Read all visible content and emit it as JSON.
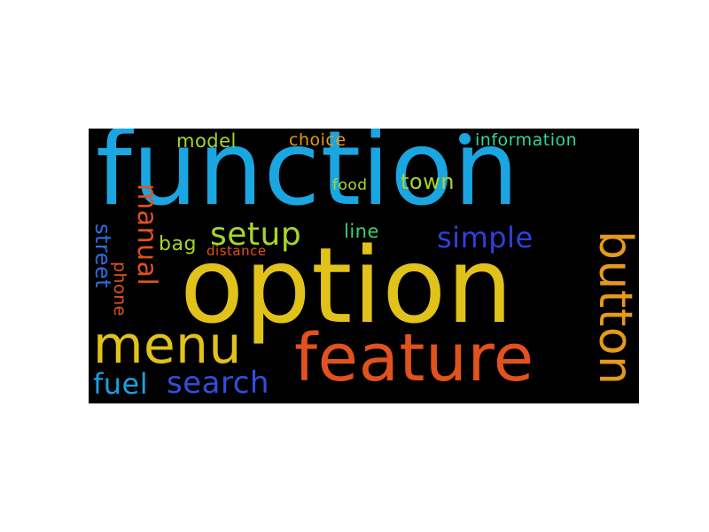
{
  "words": {
    "function": {
      "text": "function",
      "color": "#1aa6e0"
    },
    "option": {
      "text": "option",
      "color": "#e1c21a"
    },
    "feature": {
      "text": "feature",
      "color": "#e2521c"
    },
    "menu": {
      "text": "menu",
      "color": "#e1c21a"
    },
    "button": {
      "text": "button",
      "color": "#e49a1a"
    },
    "setup": {
      "text": "setup",
      "color": "#a6d62c"
    },
    "simple": {
      "text": "simple",
      "color": "#2f3fde"
    },
    "search": {
      "text": "search",
      "color": "#2f4fe0"
    },
    "fuel": {
      "text": "fuel",
      "color": "#1b9fe0"
    },
    "manual": {
      "text": "manual",
      "color": "#e2521c"
    },
    "street": {
      "text": "street",
      "color": "#2a6fe0"
    },
    "phone": {
      "text": "phone",
      "color": "#e2521c"
    },
    "town": {
      "text": "town",
      "color": "#a6d62c"
    },
    "line": {
      "text": "line",
      "color": "#3bd26a"
    },
    "bag": {
      "text": "bag",
      "color": "#a6d62c"
    },
    "model": {
      "text": "model",
      "color": "#a6d62c"
    },
    "choice": {
      "text": "choice",
      "color": "#e49a1a"
    },
    "information": {
      "text": "information",
      "color": "#2fd6a0"
    },
    "food": {
      "text": "food",
      "color": "#a6d62c"
    },
    "distance": {
      "text": "distance",
      "color": "#e2521c"
    }
  },
  "dot_color": "#1aa6e0",
  "background": "#000000"
}
